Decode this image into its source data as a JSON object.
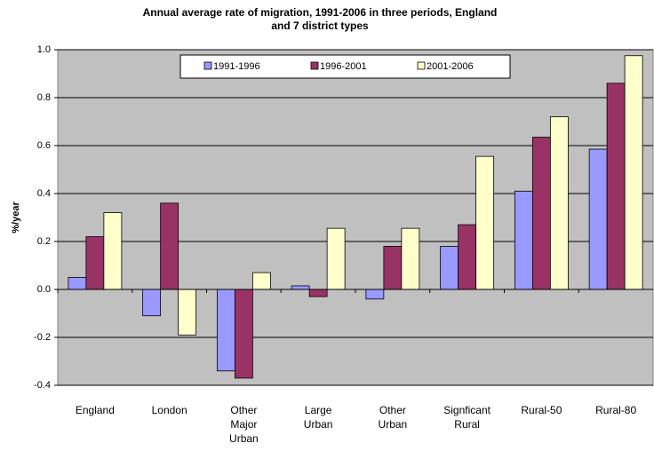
{
  "chart_data": {
    "type": "bar",
    "title": "Annual average rate of migration, 1991-2006 in three periods, England and 7 district types",
    "y_label": "%/year",
    "categories": [
      "England",
      "London",
      "Other Major Urban",
      "Large Urban",
      "Other Urban",
      "Signficant Rural",
      "Rural-50",
      "Rural-80"
    ],
    "series": [
      {
        "name": "1991-1996",
        "color": "#9999ff",
        "values": [
          0.05,
          -0.11,
          -0.34,
          0.015,
          -0.04,
          0.18,
          0.41,
          0.585
        ]
      },
      {
        "name": "1996-2001",
        "color": "#993366",
        "values": [
          0.22,
          0.36,
          -0.37,
          -0.03,
          0.18,
          0.27,
          0.635,
          0.86
        ]
      },
      {
        "name": "2001-2006",
        "color": "#ffffcc",
        "values": [
          0.32,
          -0.19,
          0.07,
          0.255,
          0.255,
          0.555,
          0.72,
          0.975
        ]
      }
    ],
    "ylim": [
      -0.4,
      1.0
    ],
    "yticks": [
      -0.4,
      -0.2,
      {
        "value": 0,
        "label": "0.0"
      },
      0.2,
      0.4,
      0.6,
      0.8,
      {
        "value": 1,
        "label": "1.0"
      }
    ],
    "grid": true,
    "legend": "top"
  }
}
